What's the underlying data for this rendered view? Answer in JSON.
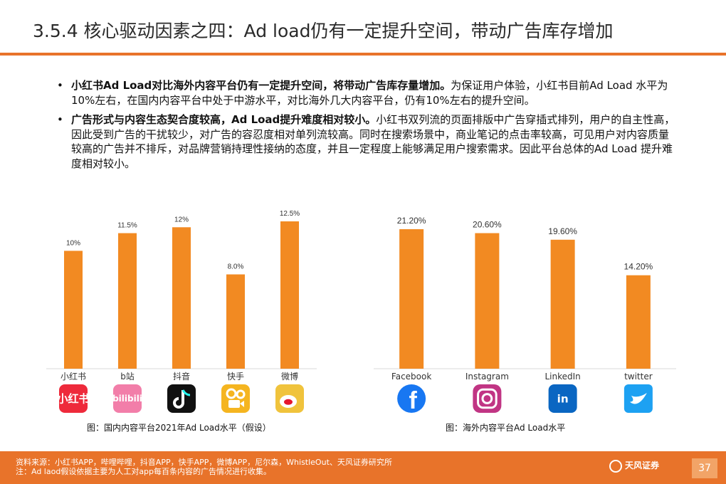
{
  "page": {
    "title": "3.5.4 核心驱动因素之四：Ad load仍有一定提升空间，带动广告库存增加",
    "page_number": "37"
  },
  "bullets": [
    {
      "bold": "小红书Ad Load对比海外内容平台仍有一定提升空间，将带动广告库存量增加。",
      "text": "为保证用户体验，小红书目前Ad Load 水平为10%左右，在国内内容平台中处于中游水平，对比海外几大内容平台，仍有10%左右的提升空间。"
    },
    {
      "bold": "广告形式与内容生态契合度较高，Ad Load提升难度相对较小。",
      "text": "小红书双列流的页面排版中广告穿插式排列，用户的自主性高，因此受到广告的干扰较少，对广告的容忍度相对单列流较高。同时在搜索场景中，商业笔记的点击率较高，可见用户对内容质量较高的广告并不排斥，对品牌营销持理性接纳的态度，并且一定程度上能够满足用户搜索需求。因此平台总体的Ad Load 提升难度相对较小。"
    }
  ],
  "chart_data": [
    {
      "type": "bar",
      "caption": "图：国内内容平台2021年Ad Load水平（假设）",
      "categories": [
        "小红书",
        "b站",
        "抖音",
        "快手",
        "微博"
      ],
      "values": [
        10,
        11.5,
        12,
        8.0,
        12.5
      ],
      "labels": [
        "10%",
        "11.5%",
        "12%",
        "8.0%",
        "12.5%"
      ],
      "icons": [
        "xiaohongshu-icon",
        "bilibili-icon",
        "douyin-icon",
        "kuaishou-icon",
        "weibo-icon"
      ],
      "icon_colors": [
        "#ee2a3b",
        "#f27ea9",
        "#111111",
        "#f5b520",
        "#f0c33c"
      ],
      "icon_texts": [
        "小红书",
        "bilibili",
        "",
        "",
        ""
      ],
      "bar_color": "#f28a22"
    },
    {
      "type": "bar",
      "caption": "图：海外内容平台Ad Load水平",
      "categories": [
        "Facebook",
        "Instagram",
        "LinkedIn",
        "twitter"
      ],
      "values": [
        21.2,
        20.6,
        19.6,
        14.2
      ],
      "labels": [
        "21.20%",
        "20.60%",
        "19.60%",
        "14.20%"
      ],
      "icons": [
        "facebook-icon",
        "instagram-icon",
        "linkedin-icon",
        "twitter-icon"
      ],
      "icon_colors": [
        "#1877f2",
        "#c13584",
        "#0a66c2",
        "#1da1f2"
      ],
      "icon_texts": [
        "",
        "",
        "in",
        ""
      ],
      "bar_color": "#f28a22"
    }
  ],
  "footer": {
    "source": "资料来源：小红书APP，哔哩哔哩，抖音APP，快手APP，微博APP，尼尔森，WhistleOut、天风证券研究所",
    "note": "注：Ad laod假设依据主要为人工对app每百条内容的广告情况进行收集。",
    "brand": "天风证券"
  }
}
